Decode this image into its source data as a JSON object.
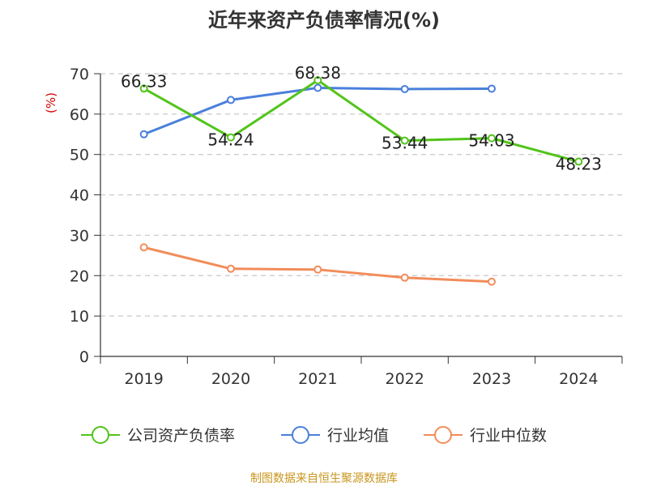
{
  "chart_data": {
    "type": "line",
    "title": "近年来资产负债率情况(%)",
    "ylabel": "(%)",
    "ylim": [
      0,
      70
    ],
    "yticks": [
      0,
      10,
      20,
      30,
      40,
      50,
      60,
      70
    ],
    "categories": [
      "2019",
      "2020",
      "2021",
      "2022",
      "2023",
      "2024"
    ],
    "grid": "horizontal-dashed",
    "legend_position": "bottom",
    "series": [
      {
        "name": "公司资产负债率",
        "color": "#52c41a",
        "values": [
          66.33,
          54.24,
          68.38,
          53.44,
          54.03,
          48.23
        ],
        "labels": [
          "66.33",
          "54.24",
          "68.38",
          "53.44",
          "54.03",
          "48.23"
        ]
      },
      {
        "name": "行业均值",
        "color": "#4a7fdc",
        "values": [
          55.0,
          63.5,
          66.5,
          66.2,
          66.3,
          null
        ]
      },
      {
        "name": "行业中位数",
        "color": "#f28c5a",
        "values": [
          27.0,
          21.7,
          21.5,
          19.5,
          18.5,
          null
        ]
      }
    ]
  },
  "source": "制图数据来自恒生聚源数据库"
}
